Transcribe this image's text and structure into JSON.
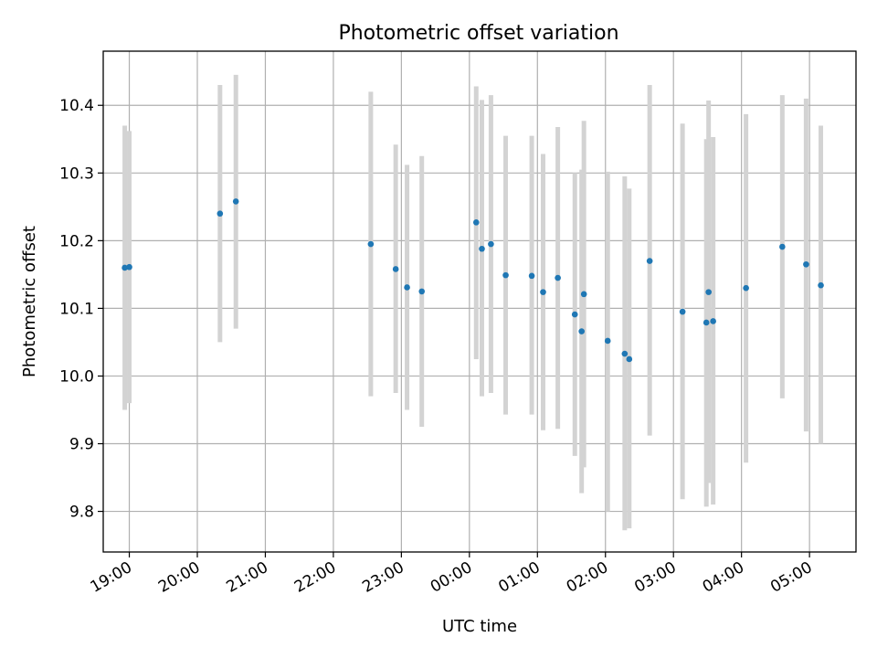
{
  "chart_data": {
    "type": "scatter",
    "title": "Photometric offset variation",
    "xlabel": "UTC time",
    "ylabel": "Photometric offset",
    "x_axis_type": "time",
    "xlim": [
      "18:37",
      "05:41"
    ],
    "ylim": [
      9.74,
      10.48
    ],
    "grid": true,
    "x_ticks": [
      "19:00",
      "20:00",
      "21:00",
      "22:00",
      "23:00",
      "00:00",
      "01:00",
      "02:00",
      "03:00",
      "04:00",
      "05:00"
    ],
    "y_ticks": [
      9.8,
      9.9,
      10.0,
      10.1,
      10.2,
      10.3,
      10.4
    ],
    "colors": {
      "marker": "#1f77b4",
      "errorbar": "#d3d3d3"
    },
    "series": [
      {
        "x": [
          "18:56",
          "19:00",
          "20:20",
          "20:34",
          "22:33",
          "22:55",
          "23:05",
          "23:18",
          "00:06",
          "00:11",
          "00:19",
          "00:32",
          "00:55",
          "01:05",
          "01:18",
          "01:33",
          "01:39",
          "01:41",
          "02:02",
          "02:17",
          "02:21",
          "02:39",
          "03:08",
          "03:29",
          "03:31",
          "03:35",
          "04:04",
          "04:36",
          "04:57",
          "05:10"
        ],
        "y": [
          10.16,
          10.161,
          10.24,
          10.258,
          10.195,
          10.158,
          10.131,
          10.125,
          10.227,
          10.188,
          10.195,
          10.149,
          10.148,
          10.124,
          10.145,
          10.091,
          10.066,
          10.121,
          10.052,
          10.033,
          10.025,
          10.17,
          10.095,
          10.079,
          10.124,
          10.081,
          10.13,
          10.191,
          10.165,
          10.134
        ],
        "y_low": [
          9.95,
          9.96,
          10.05,
          10.07,
          9.97,
          9.975,
          9.95,
          9.925,
          10.025,
          9.97,
          9.975,
          9.943,
          9.943,
          9.92,
          9.922,
          9.882,
          9.827,
          9.865,
          9.8,
          9.772,
          9.775,
          9.912,
          9.818,
          9.807,
          9.842,
          9.81,
          9.872,
          9.967,
          9.918,
          9.9
        ],
        "y_high": [
          10.37,
          10.362,
          10.43,
          10.445,
          10.42,
          10.342,
          10.312,
          10.325,
          10.428,
          10.408,
          10.415,
          10.355,
          10.355,
          10.328,
          10.368,
          10.3,
          10.305,
          10.377,
          10.302,
          10.295,
          10.277,
          10.43,
          10.373,
          10.35,
          10.407,
          10.353,
          10.387,
          10.415,
          10.41,
          10.37
        ]
      }
    ]
  }
}
